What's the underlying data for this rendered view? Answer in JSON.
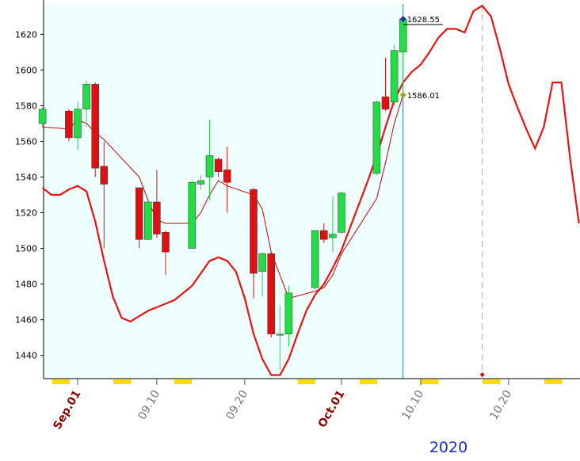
{
  "chart_data": {
    "type": "candlestick",
    "x_label": "2020",
    "xlim": [
      "2020-08-28",
      "2020-10-28"
    ],
    "ylim": [
      1427,
      1637
    ],
    "yticks": [
      1440,
      1460,
      1480,
      1500,
      1520,
      1540,
      1560,
      1580,
      1600,
      1620
    ],
    "xticks": [
      {
        "value": "2020-09-01",
        "label": "Sep.01"
      },
      {
        "value": "2020-09-10",
        "label": "09.10"
      },
      {
        "value": "2020-09-20",
        "label": "09.20"
      },
      {
        "value": "2020-10-01",
        "label": "Oct.01"
      },
      {
        "value": "2020-10-10",
        "label": "10.10"
      },
      {
        "value": "2020-10-20",
        "label": "10.20"
      }
    ],
    "month_ticks": [
      "2020-09-01",
      "2020-10-01"
    ],
    "up_color": "#22dd44",
    "down_color": "#dd1111",
    "x": [
      "2020-08-28",
      "2020-08-31",
      "2020-09-01",
      "2020-09-02",
      "2020-09-03",
      "2020-09-04",
      "2020-09-08",
      "2020-09-09",
      "2020-09-10",
      "2020-09-11",
      "2020-09-14",
      "2020-09-15",
      "2020-09-16",
      "2020-09-17",
      "2020-09-18",
      "2020-09-21",
      "2020-09-22",
      "2020-09-23",
      "2020-09-24",
      "2020-09-25",
      "2020-09-28",
      "2020-09-29",
      "2020-09-30",
      "2020-10-01",
      "2020-10-05",
      "2020-10-06",
      "2020-10-07",
      "2020-10-08"
    ],
    "open": [
      1570,
      1577,
      1562,
      1578,
      1592,
      1546,
      1534,
      1505,
      1526,
      1509,
      1500,
      1536,
      1540,
      1550,
      1544,
      1533,
      1487,
      1497,
      1452,
      1452,
      1478,
      1510,
      1506,
      1509,
      1542,
      1585,
      1582,
      1610
    ],
    "high": [
      1579,
      1578,
      1582,
      1594,
      1593,
      1560,
      1534,
      1527,
      1544,
      1510,
      1538,
      1541,
      1572,
      1551,
      1557,
      1534,
      1498,
      1498,
      1468,
      1479,
      1510,
      1514,
      1529,
      1532,
      1583,
      1607,
      1614,
      1628.55
    ],
    "low": [
      1568,
      1560,
      1555,
      1568,
      1540,
      1500,
      1500,
      1505,
      1506,
      1485,
      1500,
      1533,
      1527,
      1540,
      1520,
      1472,
      1473,
      1450,
      1432,
      1445,
      1477,
      1503,
      1498,
      1508,
      1541,
      1577,
      1580,
      1587
    ],
    "close": [
      1578,
      1562,
      1578,
      1592,
      1545,
      1536,
      1505,
      1526,
      1508,
      1498,
      1537,
      1538,
      1552,
      1543,
      1537,
      1486,
      1497,
      1452,
      1452,
      1475,
      1510,
      1505,
      1508,
      1531,
      1582,
      1578,
      1611,
      1628.55
    ],
    "ma": {
      "color": "#cc0000",
      "values": [
        1568,
        1567,
        1572,
        1570,
        1565,
        1561,
        1540,
        1527,
        1516,
        1514,
        1514,
        1520,
        1530,
        1538,
        1535,
        1530,
        1522,
        1498,
        1485,
        1472,
        1476,
        1478,
        1485,
        1497,
        1528,
        1548,
        1570,
        1586.01
      ]
    },
    "forecast": {
      "color": "#ee1111",
      "start": "2020-08-28",
      "values": [
        1534,
        1530,
        1530,
        1533,
        1535,
        1532,
        1515,
        1493,
        1473,
        1461,
        1459,
        1462,
        1465,
        1467,
        1469,
        1471,
        1475,
        1479,
        1486,
        1493,
        1495,
        1493,
        1487,
        1472,
        1452,
        1438,
        1429,
        1429,
        1438,
        1452,
        1465,
        1474,
        1480,
        1489,
        1499,
        1512,
        1525,
        1538,
        1552,
        1568,
        1583,
        1593,
        1599,
        1603,
        1610,
        1618,
        1623,
        1623,
        1621,
        1633,
        1636,
        1630,
        1612,
        1592,
        1579,
        1567,
        1556,
        1568,
        1593,
        1593,
        1550,
        1514
      ]
    },
    "today": "2020-10-08",
    "marker_date": "2020-10-17",
    "annotations": [
      {
        "label": "1628.55",
        "value": 1628.55,
        "color": "#2233aa"
      },
      {
        "label": "1586.01",
        "value": 1586.01,
        "color": "#99aa00"
      }
    ]
  }
}
